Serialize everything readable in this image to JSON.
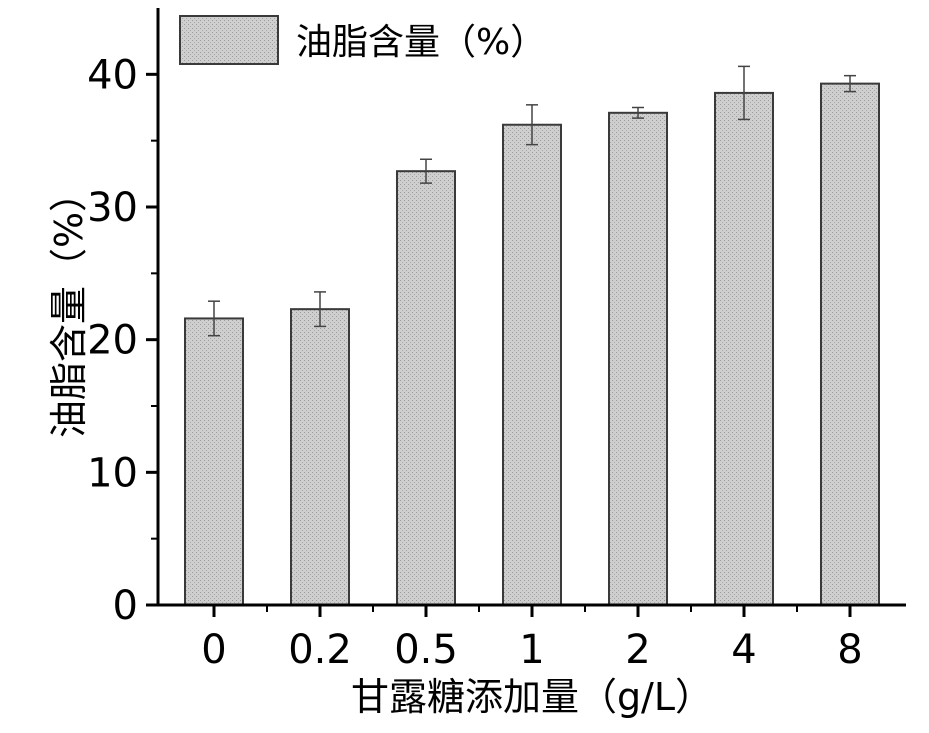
{
  "chart_data": {
    "type": "bar",
    "categories": [
      "0",
      "0.2",
      "0.5",
      "1",
      "2",
      "4",
      "8"
    ],
    "series": [
      {
        "name": "油脂含量（%）",
        "values": [
          21.6,
          22.3,
          32.7,
          36.2,
          37.1,
          38.6,
          39.3
        ],
        "errors": [
          1.3,
          1.3,
          0.9,
          1.5,
          0.4,
          2.0,
          0.6
        ]
      }
    ],
    "xlabel": "甘露糖添加量（g/L）",
    "ylabel": "油脂含量（%）",
    "ylim": [
      0,
      45
    ],
    "yticks": [
      0,
      10,
      20,
      30,
      40
    ],
    "grid": false,
    "legend_position": "top-left",
    "colors": {
      "bar_fill": "#c4c4c4",
      "bar_stroke": "#3a3a3a",
      "axis": "#000000"
    }
  }
}
